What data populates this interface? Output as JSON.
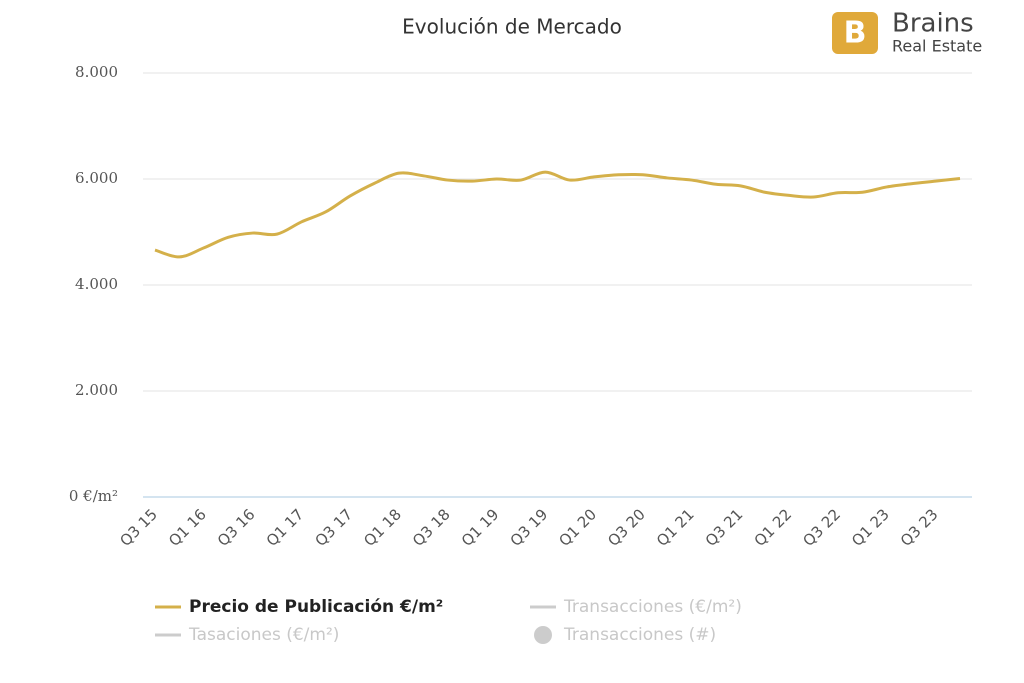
{
  "chart_data": {
    "type": "line",
    "title": "Evolución de Mercado",
    "logo": {
      "name": "Brains",
      "tagline": "Real Estate"
    },
    "categories": [
      "Q3 15",
      null,
      "Q1 16",
      null,
      "Q3 16",
      null,
      "Q1 17",
      null,
      "Q3 17",
      null,
      "Q1 18",
      null,
      "Q3 18",
      null,
      "Q1 19",
      null,
      "Q3 19",
      null,
      "Q1 20",
      null,
      "Q3 20",
      null,
      "Q1 21",
      null,
      "Q3 21",
      null,
      "Q1 22",
      null,
      "Q3 22",
      null,
      "Q1 23",
      null,
      "Q3 23",
      null
    ],
    "series": [
      {
        "name": "Precio de Publicación €/m²",
        "color": "#d4b04a",
        "values": [
          4660,
          4530,
          4700,
          4900,
          4980,
          4960,
          5190,
          5380,
          5680,
          5920,
          6110,
          6060,
          5980,
          5960,
          6000,
          5980,
          6130,
          5980,
          6040,
          6080,
          6080,
          6020,
          5980,
          5900,
          5870,
          5750,
          5690,
          5660,
          5740,
          5750,
          5850,
          5910,
          5960,
          6010
        ]
      },
      {
        "name": "Transacciones (€/m²)",
        "color": "#cccccc",
        "visible": false
      },
      {
        "name": "Tasaciones (€/m²)",
        "color": "#cccccc",
        "visible": false
      },
      {
        "name": "Transacciones (#)",
        "color": "#cccccc",
        "visible": false,
        "marker": "circle"
      }
    ],
    "ylim": [
      0,
      8000
    ],
    "yticks": [
      {
        "value": 0,
        "label": "0 €/m²"
      },
      {
        "value": 2000,
        "label": "2.000"
      },
      {
        "value": 4000,
        "label": "4.000"
      },
      {
        "value": 6000,
        "label": "6.000"
      },
      {
        "value": 8000,
        "label": "8.000"
      }
    ],
    "grid": true
  }
}
